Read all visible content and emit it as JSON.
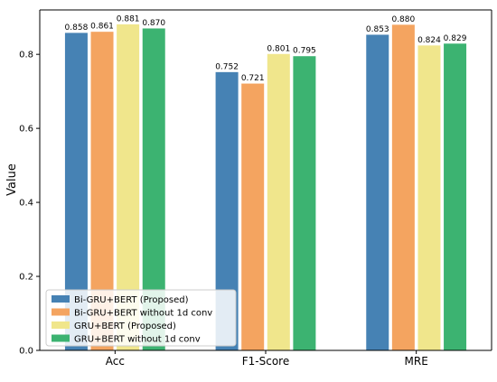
{
  "chart_data": {
    "type": "bar",
    "title": "",
    "xlabel": "",
    "ylabel": "Value",
    "ylim": [
      0,
      0.92
    ],
    "yticks": [
      0.0,
      0.2,
      0.4,
      0.6,
      0.8
    ],
    "ytick_labels": [
      "0.0",
      "0.2",
      "0.4",
      "0.6",
      "0.8"
    ],
    "categories": [
      "Acc",
      "F1-Score",
      "MRE"
    ],
    "series": [
      {
        "name": "Bi-GRU+BERT (Proposed)",
        "color": "#4682b4",
        "values": [
          0.858,
          0.752,
          0.853
        ],
        "labels": [
          "0.858",
          "0.752",
          "0.853"
        ]
      },
      {
        "name": "Bi-GRU+BERT without 1d conv",
        "color": "#f4a460",
        "values": [
          0.861,
          0.721,
          0.88
        ],
        "labels": [
          "0.861",
          "0.721",
          "0.880"
        ]
      },
      {
        "name": "GRU+BERT (Proposed)",
        "color": "#f0e68c",
        "values": [
          0.881,
          0.801,
          0.824
        ],
        "labels": [
          "0.881",
          "0.801",
          "0.824"
        ]
      },
      {
        "name": "GRU+BERT without 1d conv",
        "color": "#3cb371",
        "values": [
          0.87,
          0.795,
          0.829
        ],
        "labels": [
          "0.870",
          "0.795",
          "0.829"
        ]
      }
    ],
    "legend_position": "lower-left",
    "grid": false
  }
}
